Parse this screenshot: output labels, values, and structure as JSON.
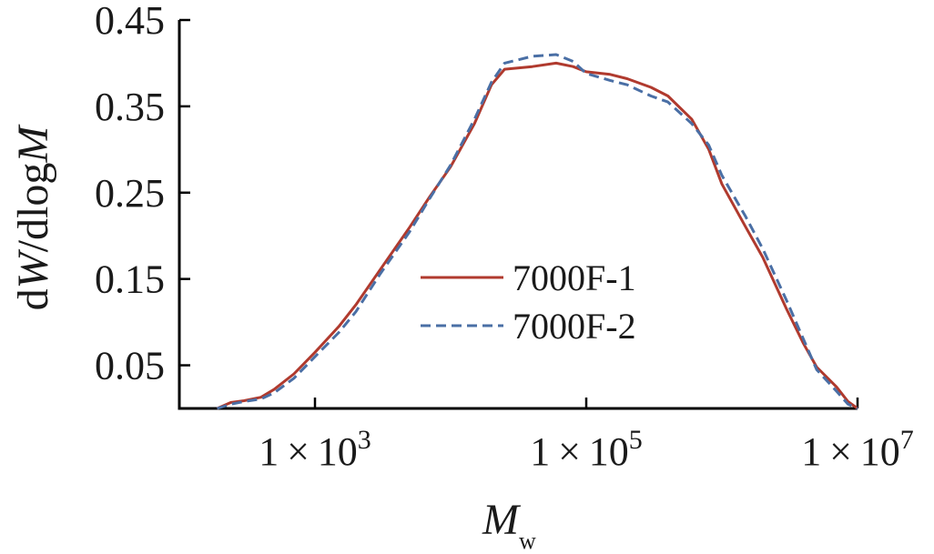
{
  "chart_data": {
    "type": "line",
    "x_scale": "log",
    "xlim": [
      100,
      10000000
    ],
    "ylim": [
      0,
      0.45
    ],
    "xticks": [
      1000,
      100000,
      10000000
    ],
    "xtick_labels": [
      {
        "base": "1",
        "times": "×",
        "mantissa": "10",
        "exp": "3"
      },
      {
        "base": "1",
        "times": "×",
        "mantissa": "10",
        "exp": "5"
      },
      {
        "base": "1",
        "times": "×",
        "mantissa": "10",
        "exp": "7"
      }
    ],
    "yticks": [
      0.05,
      0.15,
      0.25,
      0.35,
      0.45
    ],
    "ytick_labels": [
      "0.05",
      "0.15",
      "0.25",
      "0.35",
      "0.45"
    ],
    "xlabel": {
      "main": "M",
      "sub": "w"
    },
    "ylabel": "dW/dlogM",
    "grid": false,
    "legend": {
      "position": "center"
    },
    "series": [
      {
        "name": "7000F-1",
        "color": "#b03a2e",
        "dash": "solid",
        "points": [
          [
            190,
            0.0
          ],
          [
            240,
            0.007
          ],
          [
            300,
            0.009
          ],
          [
            400,
            0.013
          ],
          [
            500,
            0.022
          ],
          [
            700,
            0.04
          ],
          [
            1000,
            0.065
          ],
          [
            1500,
            0.095
          ],
          [
            2000,
            0.12
          ],
          [
            3000,
            0.16
          ],
          [
            5000,
            0.21
          ],
          [
            7000,
            0.245
          ],
          [
            10000,
            0.28
          ],
          [
            15000,
            0.33
          ],
          [
            20000,
            0.375
          ],
          [
            25000,
            0.393
          ],
          [
            40000,
            0.396
          ],
          [
            60000,
            0.4
          ],
          [
            80000,
            0.396
          ],
          [
            100000,
            0.39
          ],
          [
            150000,
            0.387
          ],
          [
            200000,
            0.382
          ],
          [
            300000,
            0.372
          ],
          [
            400000,
            0.362
          ],
          [
            600000,
            0.335
          ],
          [
            800000,
            0.3
          ],
          [
            1000000,
            0.26
          ],
          [
            1500000,
            0.21
          ],
          [
            2000000,
            0.175
          ],
          [
            3000000,
            0.115
          ],
          [
            4000000,
            0.075
          ],
          [
            5000000,
            0.048
          ],
          [
            7000000,
            0.025
          ],
          [
            8500000,
            0.008
          ],
          [
            10000000,
            0.0
          ]
        ]
      },
      {
        "name": "7000F-2",
        "color": "#4a6fa5",
        "dash": "dashed",
        "points": [
          [
            190,
            0.0
          ],
          [
            240,
            0.005
          ],
          [
            300,
            0.008
          ],
          [
            400,
            0.011
          ],
          [
            500,
            0.018
          ],
          [
            700,
            0.035
          ],
          [
            1000,
            0.06
          ],
          [
            1500,
            0.088
          ],
          [
            2000,
            0.112
          ],
          [
            3000,
            0.155
          ],
          [
            5000,
            0.205
          ],
          [
            7000,
            0.243
          ],
          [
            10000,
            0.282
          ],
          [
            15000,
            0.335
          ],
          [
            20000,
            0.378
          ],
          [
            25000,
            0.4
          ],
          [
            40000,
            0.408
          ],
          [
            60000,
            0.41
          ],
          [
            80000,
            0.402
          ],
          [
            100000,
            0.388
          ],
          [
            150000,
            0.38
          ],
          [
            200000,
            0.375
          ],
          [
            300000,
            0.362
          ],
          [
            400000,
            0.355
          ],
          [
            600000,
            0.33
          ],
          [
            800000,
            0.305
          ],
          [
            1000000,
            0.27
          ],
          [
            1500000,
            0.222
          ],
          [
            2000000,
            0.185
          ],
          [
            3000000,
            0.125
          ],
          [
            4000000,
            0.08
          ],
          [
            5000000,
            0.045
          ],
          [
            7000000,
            0.02
          ],
          [
            8500000,
            0.005
          ],
          [
            10000000,
            0.0
          ]
        ]
      }
    ]
  }
}
